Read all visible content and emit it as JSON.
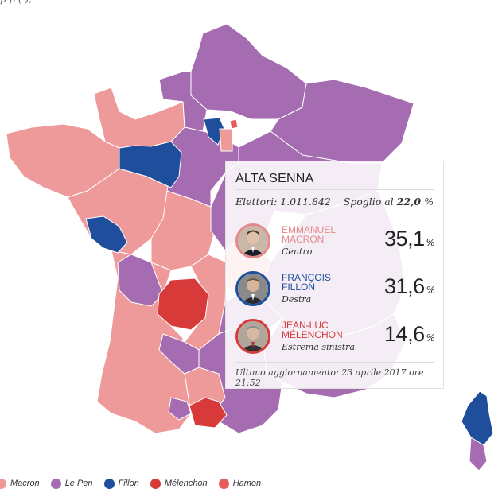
{
  "header": {
    "partial_text": "p      p       (                  ),"
  },
  "colors": {
    "macron": "#ef9a9a",
    "lepen": "#a56cb1",
    "fillon": "#1f4e9c",
    "melenchon": "#d83a3a",
    "hamon": "#e85b5b"
  },
  "tooltip": {
    "title": "ALTA SENNA",
    "electors_label": "Elettori:",
    "electors_value": "1.011.842",
    "counted_label": "Spoglio al",
    "counted_value": "22,0",
    "counted_unit": "%",
    "candidates": [
      {
        "name_line1": "EMMANUEL",
        "name_line2": "MACRON",
        "party": "Centro",
        "percent": "35,1",
        "unit": "%",
        "color": "#e58a8a"
      },
      {
        "name_line1": "FRANÇOIS",
        "name_line2": "FILLON",
        "party": "Destra",
        "percent": "31,6",
        "unit": "%",
        "color": "#1f4e9c"
      },
      {
        "name_line1": "JEAN-LUC",
        "name_line2": "MÉLENCHON",
        "party": "Estrema sinistra",
        "percent": "14,6",
        "unit": "%",
        "color": "#d83a3a"
      }
    ],
    "updated": "Ultimo aggiornamento: 23 aprile 2017 ore 21:52"
  },
  "legend": [
    {
      "label": "Macron",
      "color": "#ef9a9a"
    },
    {
      "label": "Le Pen",
      "color": "#a56cb1"
    },
    {
      "label": "Fillon",
      "color": "#1f4e9c"
    },
    {
      "label": "Mélenchon",
      "color": "#d83a3a"
    },
    {
      "label": "Hamon",
      "color": "#e85b5b"
    }
  ]
}
